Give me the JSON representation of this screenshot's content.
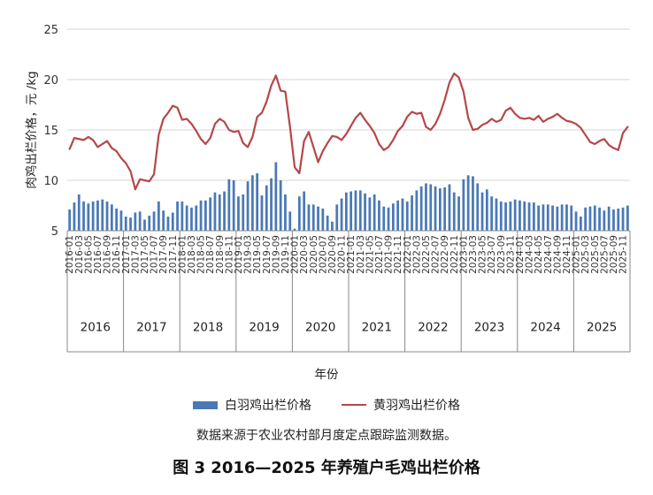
{
  "colors": {
    "white_bar": "#4a79b6",
    "yellow_line": "#b5474a",
    "grid": "#d4d4d4",
    "axis": "#888888"
  },
  "chart_data": {
    "type": "bar+line",
    "title": "",
    "ylabel": "肉鸡出栏价格，元 /kg",
    "xlabel": "年份",
    "ylim": [
      5,
      25
    ],
    "yticks": [
      5,
      10,
      15,
      20,
      25
    ],
    "grid": true,
    "years": [
      "2016",
      "2017",
      "2018",
      "2019",
      "2020",
      "2021",
      "2022",
      "2023",
      "2024",
      "2025"
    ],
    "month_labels": [
      "2016-01",
      "2016-03",
      "2016-05",
      "2016-07",
      "2016-09",
      "2016-11",
      "2017-01",
      "2017-03",
      "2017-05",
      "2017-07",
      "2017-09",
      "2017-11",
      "2018-01",
      "2018-03",
      "2018-05",
      "2018-07",
      "2018-09",
      "2018-11",
      "2019-01",
      "2019-03",
      "2019-05",
      "2019-07",
      "2019-09",
      "2019-11",
      "2020-01",
      "2020-03",
      "2020-05",
      "2020-07",
      "2020-09",
      "2020-11",
      "2021-01",
      "2021-03",
      "2021-05",
      "2021-07",
      "2021-09",
      "2021-11",
      "2022-01",
      "2022-03",
      "2022-05",
      "2022-07",
      "2022-09",
      "2022-11",
      "2023-01",
      "2023-03",
      "2023-05",
      "2023-07",
      "2023-09",
      "2023-11",
      "2024-01",
      "2024-03",
      "2024-05",
      "2024-07",
      "2024-09",
      "2024-11",
      "2025-01",
      "2025-03",
      "2025-05",
      "2025-07",
      "2025-09",
      "2025-11"
    ],
    "series": [
      {
        "name": "白羽鸡出栏价格",
        "type": "bar",
        "values": [
          7.1,
          7.8,
          8.6,
          7.9,
          7.7,
          7.9,
          8.0,
          8.1,
          7.9,
          7.6,
          7.2,
          7.0,
          6.4,
          6.3,
          6.8,
          6.9,
          6.1,
          6.5,
          6.9,
          7.9,
          7.0,
          6.4,
          6.8,
          7.9,
          7.9,
          7.5,
          7.3,
          7.5,
          8.0,
          8.0,
          8.3,
          8.8,
          8.6,
          8.9,
          10.1,
          10.0,
          8.4,
          8.6,
          9.9,
          10.5,
          10.7,
          8.5,
          9.5,
          10.2,
          11.8,
          10.0,
          8.6,
          6.9,
          5.2,
          8.4,
          8.9,
          7.6,
          7.6,
          7.4,
          7.2,
          6.5,
          5.9,
          7.6,
          8.2,
          8.8,
          8.9,
          9.0,
          9.0,
          8.7,
          8.3,
          8.6,
          8.0,
          7.4,
          7.3,
          7.7,
          8.0,
          8.2,
          7.9,
          8.5,
          9.0,
          9.4,
          9.7,
          9.6,
          9.4,
          9.2,
          9.3,
          9.6,
          8.8,
          8.4,
          10.1,
          10.5,
          10.4,
          9.7,
          8.8,
          9.1,
          8.4,
          8.2,
          7.9,
          7.8,
          7.9,
          8.1,
          8.0,
          7.9,
          7.8,
          7.8,
          7.5,
          7.6,
          7.6,
          7.5,
          7.4,
          7.6,
          7.6,
          7.5,
          6.9,
          6.4,
          7.3,
          7.4,
          7.5,
          7.3,
          7.0,
          7.4,
          7.1,
          7.2,
          7.3,
          7.5
        ]
      },
      {
        "name": "黄羽鸡出栏价格",
        "type": "line",
        "values": [
          13.1,
          14.2,
          14.1,
          14.0,
          14.3,
          14.0,
          13.3,
          13.6,
          13.9,
          13.2,
          12.9,
          12.2,
          11.7,
          10.9,
          9.1,
          10.1,
          10.0,
          9.9,
          10.6,
          14.5,
          16.1,
          16.7,
          17.4,
          17.2,
          16.0,
          16.1,
          15.6,
          14.9,
          14.1,
          13.6,
          14.2,
          15.6,
          16.1,
          15.8,
          15.0,
          14.8,
          14.9,
          13.7,
          13.3,
          14.3,
          16.3,
          16.7,
          17.8,
          19.4,
          20.4,
          18.9,
          18.8,
          15.3,
          11.3,
          10.7,
          13.9,
          14.8,
          13.3,
          11.8,
          12.9,
          13.7,
          14.4,
          14.3,
          14.0,
          14.6,
          15.4,
          16.2,
          16.7,
          16.0,
          15.4,
          14.7,
          13.6,
          13.0,
          13.3,
          14.0,
          14.9,
          15.4,
          16.3,
          16.8,
          16.6,
          16.7,
          15.3,
          15.0,
          15.6,
          16.6,
          18.0,
          19.7,
          20.6,
          20.2,
          18.8,
          16.2,
          15.0,
          15.1,
          15.5,
          15.7,
          16.1,
          15.8,
          16.0,
          16.9,
          17.2,
          16.6,
          16.2,
          16.1,
          16.2,
          16.0,
          16.4,
          15.8,
          16.1,
          16.3,
          16.6,
          16.2,
          15.9,
          15.8,
          15.6,
          15.2,
          14.5,
          13.8,
          13.6,
          13.9,
          14.1,
          13.5,
          13.2,
          13.0,
          14.7,
          15.3
        ]
      }
    ]
  },
  "legend": {
    "bar_label": "白羽鸡出栏价格",
    "line_label": "黄羽鸡出栏价格"
  },
  "source_note": "数据来源于农业农村部月度定点跟踪监测数据。",
  "caption": "图 3 2016—2025 年养殖户毛鸡出栏价格"
}
